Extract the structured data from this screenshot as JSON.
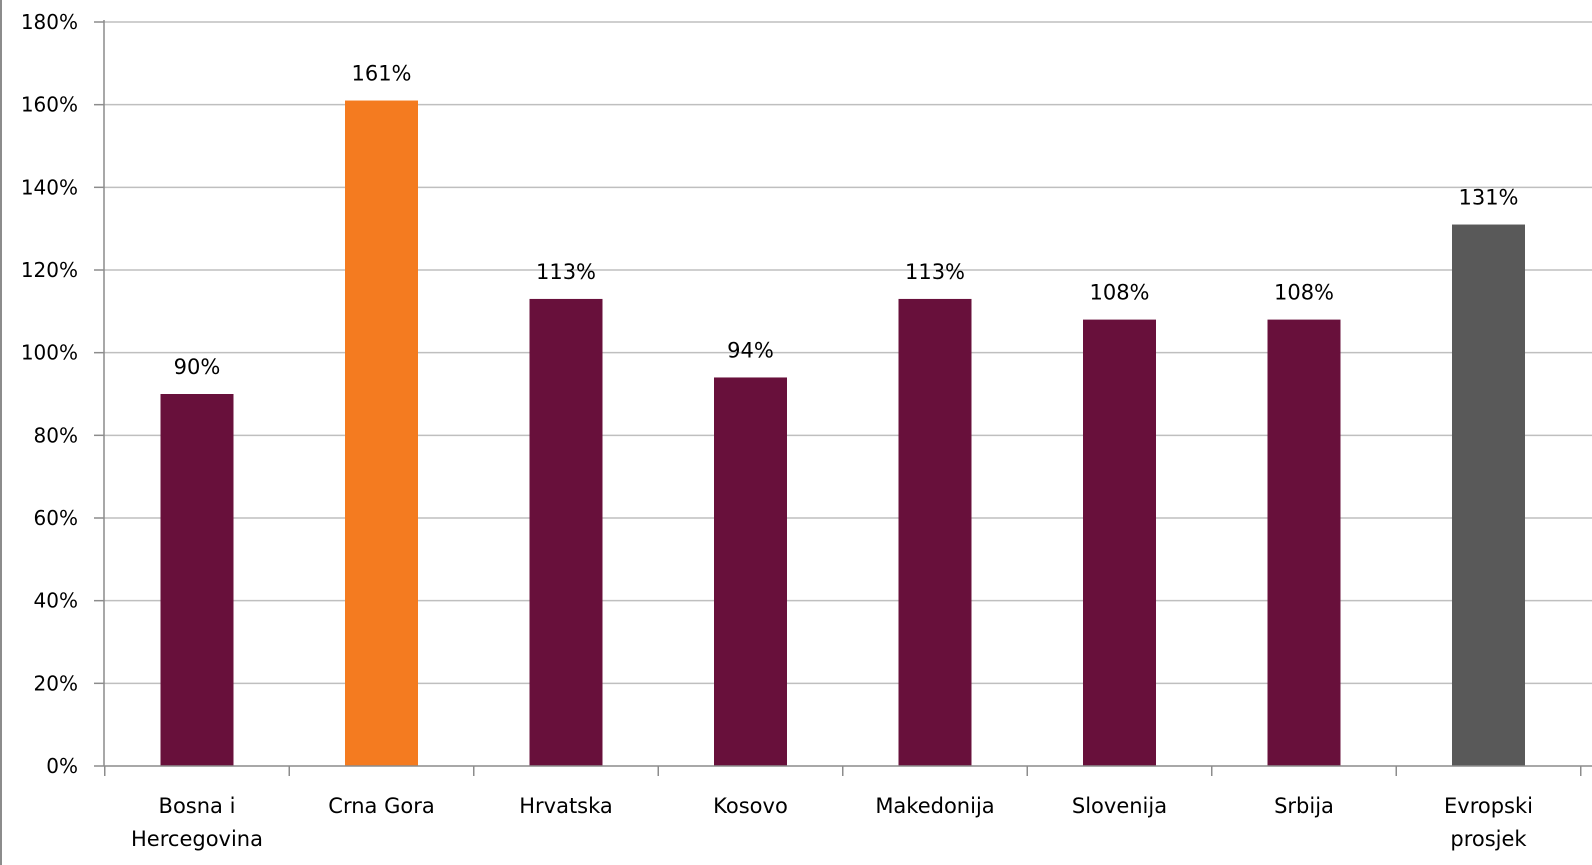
{
  "chart_data": {
    "type": "bar",
    "title": "",
    "xlabel": "",
    "ylabel": "",
    "ylim": [
      0,
      180
    ],
    "y_unit": "%",
    "y_ticks": [
      "0%",
      "20%",
      "40%",
      "60%",
      "80%",
      "100%",
      "120%",
      "140%",
      "160%",
      "180%"
    ],
    "grid": true,
    "legend": "none",
    "categories": [
      [
        "Bosna i",
        "Hercegovina"
      ],
      [
        "Crna Gora"
      ],
      [
        "Hrvatska"
      ],
      [
        "Kosovo"
      ],
      [
        "Makedonija"
      ],
      [
        "Slovenija"
      ],
      [
        "Srbija"
      ],
      [
        "Evropski",
        "prosjek"
      ]
    ],
    "values": [
      90,
      161,
      113,
      94,
      113,
      108,
      108,
      131
    ],
    "data_labels": [
      "90%",
      "161%",
      "113%",
      "94%",
      "113%",
      "108%",
      "108%",
      "131%"
    ],
    "bar_colors": [
      "#68103b",
      "#f47b20",
      "#68103b",
      "#68103b",
      "#68103b",
      "#68103b",
      "#68103b",
      "#595959"
    ]
  }
}
